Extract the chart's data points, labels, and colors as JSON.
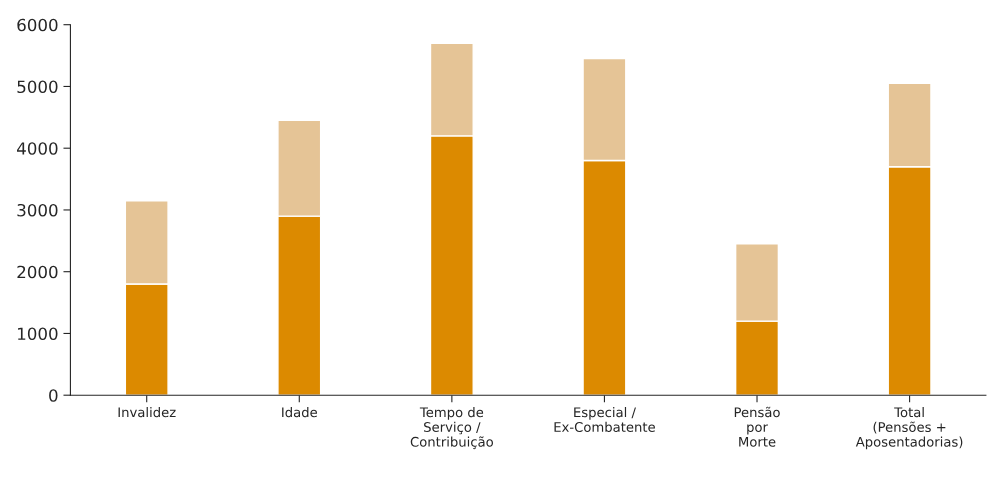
{
  "chart_data": {
    "type": "bar",
    "stacked": true,
    "categories": [
      "Invalidez",
      "Idade",
      "Tempo de\nServiço /\nContribuição",
      "Especial /\nEx-Combatente",
      "Pensão\npor\nMorte",
      "Total\n(Pensões +\nAposentadorias)"
    ],
    "series": [
      {
        "color": "#dc8a00",
        "values": [
          1800,
          2900,
          4200,
          3800,
          1200,
          3700
        ]
      },
      {
        "color": "#e5c496",
        "values": [
          1350,
          1550,
          1500,
          1650,
          1250,
          1350
        ]
      }
    ],
    "ylim": [
      0,
      6000
    ],
    "yticks": [
      0,
      1000,
      2000,
      3000,
      4000,
      5000,
      6000
    ],
    "grid": false,
    "legend": false
  }
}
